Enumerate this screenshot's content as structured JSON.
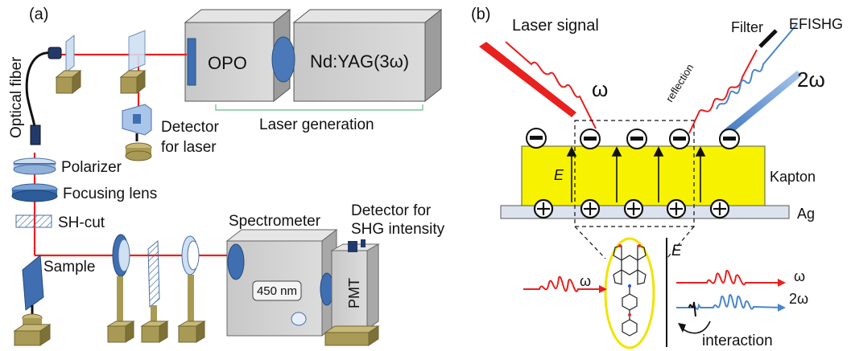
{
  "panel_a": {
    "tag": "(a)",
    "optical_fiber": "Optical fiber",
    "opo": "OPO",
    "ndyag": "Nd:YAG(3ω)",
    "laser_generation": "Laser  generation",
    "detector_laser_1": "Detector",
    "detector_laser_2": "for laser",
    "polarizer": "Polarizer",
    "focusing_lens": "Focusing lens",
    "sh_cut": "SH-cut",
    "sample": "Sample",
    "spectrometer": "Spectrometer",
    "wavelength": "450 nm",
    "detector_shg_1": "Detector for",
    "detector_shg_2": "SHG intensity",
    "pmt": "PMT"
  },
  "panel_b": {
    "tag": "(b)",
    "laser_signal": "Laser signal",
    "omega": "ω",
    "filter": "Filter",
    "efishg": "EFISHG",
    "two_omega": "2ω",
    "reflection": "reflection",
    "e_field": "E",
    "kapton": "Kapton",
    "ag": "Ag",
    "inset_e": "E",
    "inset_omega_in": "ω",
    "inset_omega_out": "ω",
    "inset_two_omega": "2ω",
    "interaction": "interaction"
  },
  "colors": {
    "laser_red": "#e8201e",
    "shg_blue": "#4a86c8",
    "kapton_yellow": "#f7f200",
    "box_gray": "#d0d0d0",
    "mount_olive": "#a89a55",
    "lens_blue": "#5a86c8"
  }
}
